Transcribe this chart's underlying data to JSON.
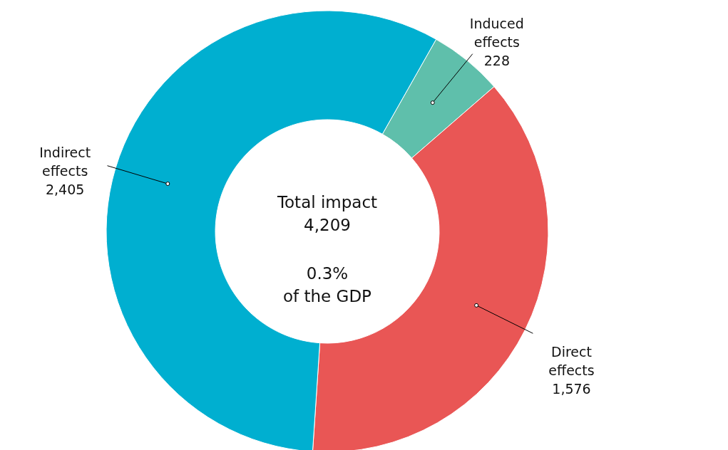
{
  "chart_data": {
    "type": "donut",
    "categories": [
      "Induced effects",
      "Direct effects",
      "Indirect effects"
    ],
    "values": [
      228,
      1576,
      2405
    ],
    "colors": [
      "#5fbfab",
      "#e95655",
      "#00afd0"
    ],
    "value_labels": [
      "228",
      "1,576",
      "2,405"
    ],
    "annotations": [
      "Total impact\n4,209",
      "0.3%\nof the GDP"
    ]
  }
}
